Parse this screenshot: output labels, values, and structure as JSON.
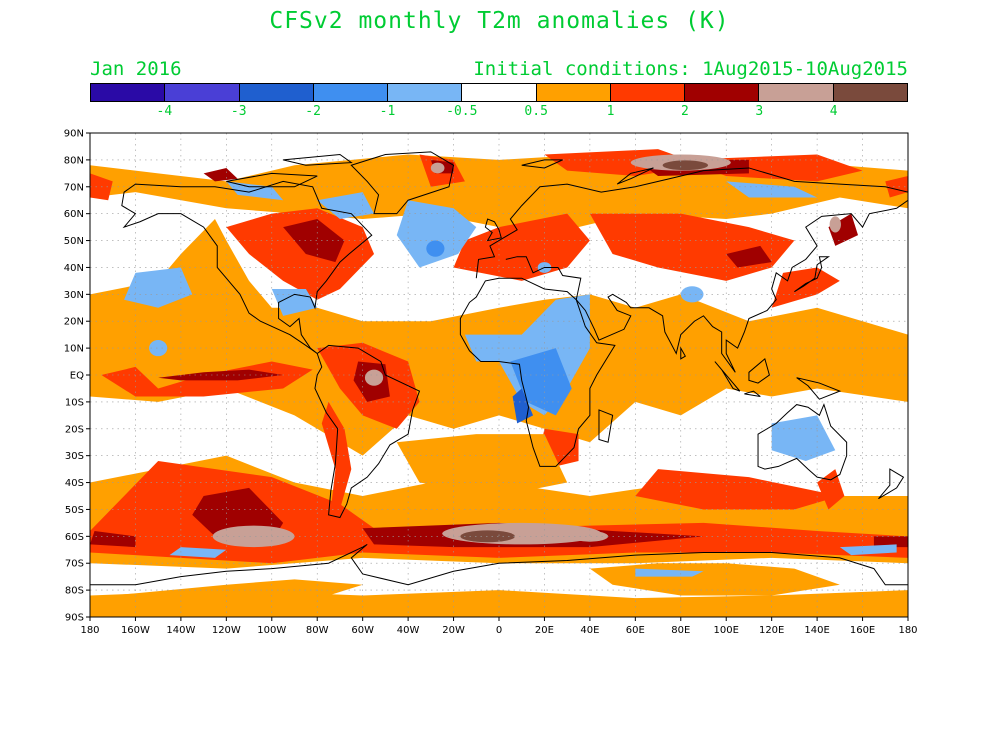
{
  "title": "CFSv2 monthly T2m anomalies (K)",
  "forecast_month": "Jan 2016",
  "initial_conditions": "Initial conditions: 1Aug2015-10Aug2015",
  "colorbar": {
    "colors": [
      "#2a0aa6",
      "#4a3fd6",
      "#1f5fcf",
      "#3f8ff0",
      "#78b6f5",
      "#ffffff",
      "#ffa000",
      "#ff3a00",
      "#a00000",
      "#c8a096",
      "#7a4a3c"
    ],
    "labels": [
      "-4",
      "-3",
      "-2",
      "-1",
      "-0.5",
      "0.5",
      "1",
      "2",
      "3",
      "4"
    ]
  },
  "axes": {
    "lat_labels": [
      "90N",
      "80N",
      "70N",
      "60N",
      "50N",
      "40N",
      "30N",
      "20N",
      "10N",
      "EQ",
      "10S",
      "20S",
      "30S",
      "40S",
      "50S",
      "60S",
      "70S",
      "80S",
      "90S"
    ],
    "lon_labels": [
      "180",
      "160W",
      "140W",
      "120W",
      "100W",
      "80W",
      "60W",
      "40W",
      "20W",
      "0",
      "20E",
      "40E",
      "60E",
      "80E",
      "100E",
      "120E",
      "140E",
      "160E",
      "180"
    ]
  },
  "map_colors": {
    "orange": "#ffa000",
    "red": "#ff3a00",
    "dark_red": "#a00000",
    "rose": "#c8a096",
    "brown": "#7a4a3c",
    "light_blue": "#78b6f5",
    "blue": "#3f8ff0",
    "dark_blue": "#1f5fcf"
  }
}
